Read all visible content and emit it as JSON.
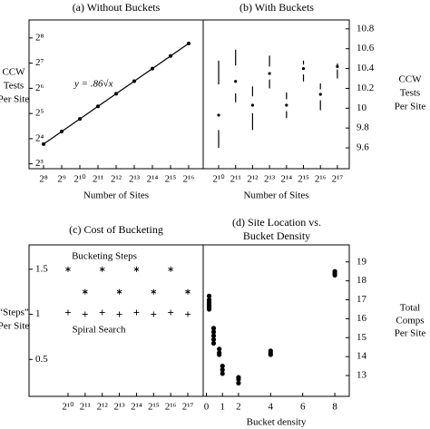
{
  "chart_data": [
    {
      "type": "line",
      "title": "(a) Without Buckets",
      "x_label": "Number of Sites",
      "y_label": [
        "CCW",
        "Tests",
        "Per Site"
      ],
      "log_x": true,
      "log_y": true,
      "color": "#000000",
      "annotation": "y = .86√x",
      "x": [
        256,
        512,
        1024,
        2048,
        4096,
        8192,
        16384,
        32768,
        65536
      ],
      "values": [
        13.76,
        19.46,
        27.52,
        38.92,
        55.04,
        77.84,
        110.08,
        155.68,
        220.16
      ],
      "xlim": [
        147,
        114105
      ],
      "ylim": [
        7,
        420
      ],
      "xticks": [
        {
          "value": 256,
          "label": "2⁸"
        },
        {
          "value": 512,
          "label": "2⁹"
        },
        {
          "value": 1024,
          "label": "2¹⁰"
        },
        {
          "value": 2048,
          "label": "2¹¹"
        },
        {
          "value": 4096,
          "label": "2¹²"
        },
        {
          "value": 8192,
          "label": "2¹³"
        },
        {
          "value": 16384,
          "label": "2¹⁴"
        },
        {
          "value": 32768,
          "label": "2¹⁵"
        },
        {
          "value": 65536,
          "label": "2¹⁶"
        }
      ],
      "yticks": [
        {
          "value": 8,
          "label": "2³"
        },
        {
          "value": 16,
          "label": "2⁴"
        },
        {
          "value": 32,
          "label": "2⁵"
        },
        {
          "value": 64,
          "label": "2⁶"
        },
        {
          "value": 128,
          "label": "2⁷"
        },
        {
          "value": 256,
          "label": "2⁸"
        }
      ]
    },
    {
      "type": "range",
      "title": "(b) With Buckets",
      "x_label": "Number of Sites",
      "y_label": [
        "CCW",
        "Tests",
        "Per Site"
      ],
      "log_x": true,
      "color": "#000000",
      "x": [
        1024,
        2048,
        4096,
        8192,
        16384,
        32768,
        65536,
        131072
      ],
      "min": [
        9.6,
        10.06,
        9.78,
        10.2,
        9.9,
        10.27,
        9.98,
        10.3
      ],
      "q1": [
        9.78,
        10.15,
        9.95,
        10.29,
        9.97,
        10.34,
        10.08,
        10.39
      ],
      "median": [
        9.93,
        10.27,
        10.03,
        10.35,
        10.03,
        10.4,
        10.14,
        10.42
      ],
      "q3": [
        10.24,
        10.43,
        10.12,
        10.42,
        10.09,
        10.44,
        10.19,
        10.43
      ],
      "max": [
        10.48,
        10.59,
        10.22,
        10.53,
        10.16,
        10.48,
        10.25,
        10.45
      ],
      "xlim": [
        545,
        212923
      ],
      "ylim": [
        9.39,
        10.89
      ],
      "xticks": [
        {
          "value": 1024,
          "label": "2¹⁰"
        },
        {
          "value": 2048,
          "label": "2¹¹"
        },
        {
          "value": 4096,
          "label": "2¹²"
        },
        {
          "value": 8192,
          "label": "2¹³"
        },
        {
          "value": 16384,
          "label": "2¹⁴"
        },
        {
          "value": 32768,
          "label": "2¹⁵"
        },
        {
          "value": 65536,
          "label": "2¹⁶"
        },
        {
          "value": 131072,
          "label": "2¹⁷"
        }
      ],
      "yticks": [
        9.6,
        9.8,
        10,
        10.2,
        10.4,
        10.6,
        10.8
      ]
    },
    {
      "type": "scatter",
      "title": "(c) Cost of Bucketing",
      "y_label": [
        "“Steps”",
        "Per Site"
      ],
      "log_x": true,
      "color": "#000000",
      "x": [
        1024,
        2048,
        4096,
        8192,
        16384,
        32768,
        65536,
        131072
      ],
      "series": [
        {
          "name": "Bucketing Steps",
          "marker": "asterisk",
          "values": [
            1.5,
            1.25,
            1.5,
            1.25,
            1.5,
            1.25,
            1.5,
            1.25
          ]
        },
        {
          "name": "Spiral Search",
          "marker": "plus",
          "values": [
            1.02,
            1.0,
            1.02,
            1.0,
            1.02,
            1.0,
            1.02,
            1.0
          ]
        }
      ],
      "xlim": [
        211,
        244589
      ],
      "ylim": [
        0.09,
        1.77
      ],
      "xticks": [
        {
          "value": 1024,
          "label": "2¹⁰"
        },
        {
          "value": 2048,
          "label": "2¹¹"
        },
        {
          "value": 4096,
          "label": "2¹²"
        },
        {
          "value": 8192,
          "label": "2¹³"
        },
        {
          "value": 16384,
          "label": "2¹⁴"
        },
        {
          "value": 32768,
          "label": "2¹⁵"
        },
        {
          "value": 65536,
          "label": "2¹⁶"
        },
        {
          "value": 131072,
          "label": "2¹⁷"
        }
      ],
      "yticks": [
        0.5,
        1,
        1.5
      ]
    },
    {
      "type": "scatter",
      "title": [
        "(d) Site Location vs.",
        "Bucket Density"
      ],
      "x_label": "Bucket density",
      "y_label": [
        "Total",
        "Comps",
        "Per Site"
      ],
      "color": "#000000",
      "x": [
        0.17,
        0.17,
        0.17,
        0.17,
        0.17,
        0.17,
        0.17,
        0.45,
        0.45,
        0.45,
        0.45,
        0.45,
        0.8,
        0.8,
        0.8,
        1,
        1,
        1,
        2,
        2,
        2,
        4,
        4,
        4,
        8,
        8,
        8
      ],
      "values": [
        17.2,
        17.0,
        16.9,
        16.8,
        16.7,
        16.6,
        16.5,
        15.5,
        15.3,
        15.1,
        14.9,
        14.7,
        14.4,
        14.2,
        14.1,
        13.5,
        13.3,
        13.1,
        12.9,
        12.8,
        12.6,
        14.3,
        14.2,
        14.1,
        18.5,
        18.4,
        18.3
      ],
      "xlim": [
        -0.2,
        8.9
      ],
      "ylim": [
        11.9,
        19.9
      ],
      "xticks": [
        0,
        1,
        2,
        4,
        6,
        8
      ],
      "yticks": [
        13,
        14,
        15,
        16,
        17,
        18,
        19
      ]
    }
  ]
}
